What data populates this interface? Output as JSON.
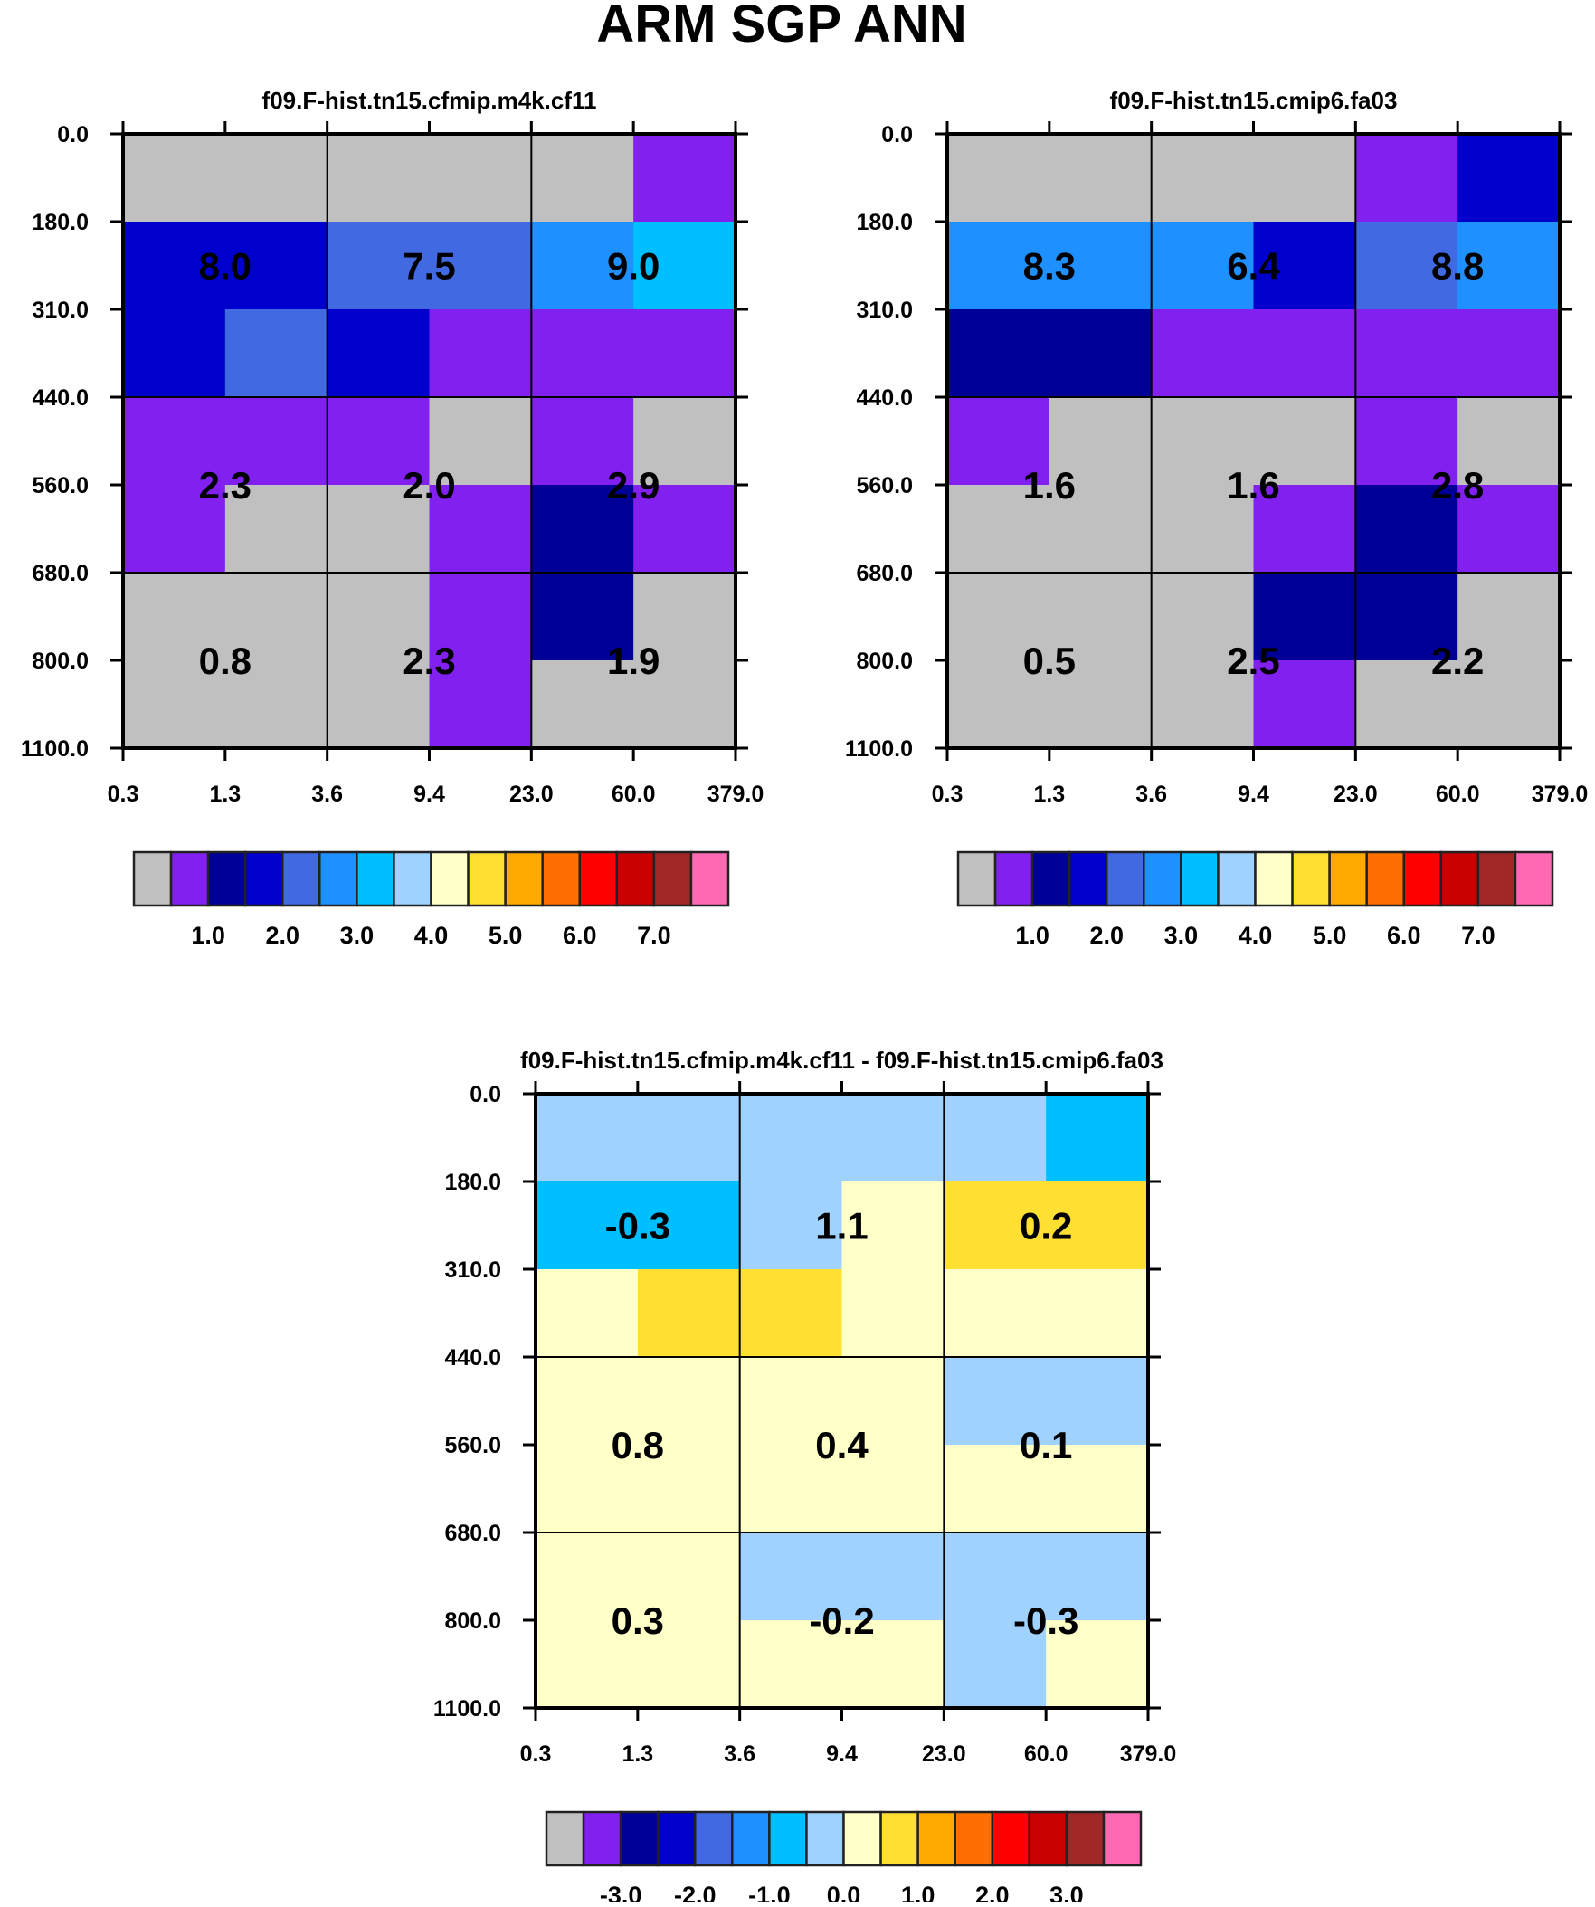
{
  "title": "ARM SGP ANN",
  "palette": [
    "#c0c0c0",
    "#8220f0",
    "#000096",
    "#0000cd",
    "#4169e1",
    "#1e90ff",
    "#00bfff",
    "#a0d2ff",
    "#ffffc8",
    "#ffe032",
    "#ffaa00",
    "#ff6e00",
    "#ff0000",
    "#c80000",
    "#a02828",
    "#ff69b4"
  ],
  "chart_data": [
    {
      "type": "heatmap",
      "title": "f09.F-hist.tn15.cfmip.m4k.cf11",
      "xticks": [
        "0.3",
        "1.3",
        "3.6",
        "9.4",
        "23.0",
        "60.0",
        "379.0"
      ],
      "yticks": [
        "0.0",
        "180.0",
        "310.0",
        "440.0",
        "560.0",
        "680.0",
        "800.0",
        "1100.0"
      ],
      "cell_color_index": [
        [
          0,
          0,
          0,
          0,
          0,
          1
        ],
        [
          3,
          3,
          4,
          4,
          5,
          6
        ],
        [
          3,
          4,
          3,
          1,
          1,
          1
        ],
        [
          1,
          1,
          1,
          0,
          1,
          0
        ],
        [
          1,
          0,
          0,
          1,
          2,
          1
        ],
        [
          0,
          0,
          0,
          1,
          2,
          0
        ],
        [
          0,
          0,
          0,
          1,
          0,
          0
        ]
      ],
      "block_values": [
        [
          "8.0",
          "7.5",
          "9.0"
        ],
        [
          "2.3",
          "2.0",
          "2.9"
        ],
        [
          "0.8",
          "2.3",
          "1.9"
        ]
      ],
      "colorbar_labels": [
        "1.0",
        "2.0",
        "3.0",
        "4.0",
        "5.0",
        "6.0",
        "7.0"
      ]
    },
    {
      "type": "heatmap",
      "title": "f09.F-hist.tn15.cmip6.fa03",
      "xticks": [
        "0.3",
        "1.3",
        "3.6",
        "9.4",
        "23.0",
        "60.0",
        "379.0"
      ],
      "yticks": [
        "0.0",
        "180.0",
        "310.0",
        "440.0",
        "560.0",
        "680.0",
        "800.0",
        "1100.0"
      ],
      "cell_color_index": [
        [
          0,
          0,
          0,
          0,
          1,
          3
        ],
        [
          5,
          5,
          5,
          3,
          4,
          5
        ],
        [
          2,
          2,
          1,
          1,
          1,
          1
        ],
        [
          1,
          0,
          0,
          0,
          1,
          0
        ],
        [
          0,
          0,
          0,
          1,
          2,
          1
        ],
        [
          0,
          0,
          0,
          2,
          2,
          0
        ],
        [
          0,
          0,
          0,
          1,
          0,
          0
        ]
      ],
      "block_values": [
        [
          "8.3",
          "6.4",
          "8.8"
        ],
        [
          "1.6",
          "1.6",
          "2.8"
        ],
        [
          "0.5",
          "2.5",
          "2.2"
        ]
      ],
      "colorbar_labels": [
        "1.0",
        "2.0",
        "3.0",
        "4.0",
        "5.0",
        "6.0",
        "7.0"
      ]
    },
    {
      "type": "heatmap",
      "title": "f09.F-hist.tn15.cfmip.m4k.cf11 - f09.F-hist.tn15.cmip6.fa03",
      "xticks": [
        "0.3",
        "1.3",
        "3.6",
        "9.4",
        "23.0",
        "60.0",
        "379.0"
      ],
      "yticks": [
        "0.0",
        "180.0",
        "310.0",
        "440.0",
        "560.0",
        "680.0",
        "800.0",
        "1100.0"
      ],
      "cell_color_index": [
        [
          7,
          7,
          7,
          7,
          7,
          6
        ],
        [
          6,
          6,
          7,
          8,
          9,
          9
        ],
        [
          8,
          9,
          9,
          8,
          8,
          8
        ],
        [
          8,
          8,
          8,
          8,
          7,
          7
        ],
        [
          8,
          8,
          8,
          8,
          8,
          8
        ],
        [
          8,
          8,
          7,
          7,
          7,
          7
        ],
        [
          8,
          8,
          8,
          8,
          7,
          8
        ]
      ],
      "block_values": [
        [
          "-0.3",
          "1.1",
          "0.2"
        ],
        [
          "0.8",
          "0.4",
          "0.1"
        ],
        [
          "0.3",
          "-0.2",
          "-0.3"
        ]
      ],
      "colorbar_labels": [
        "-3.0",
        "-2.0",
        "-1.0",
        "0.0",
        "1.0",
        "2.0",
        "3.0"
      ]
    }
  ]
}
